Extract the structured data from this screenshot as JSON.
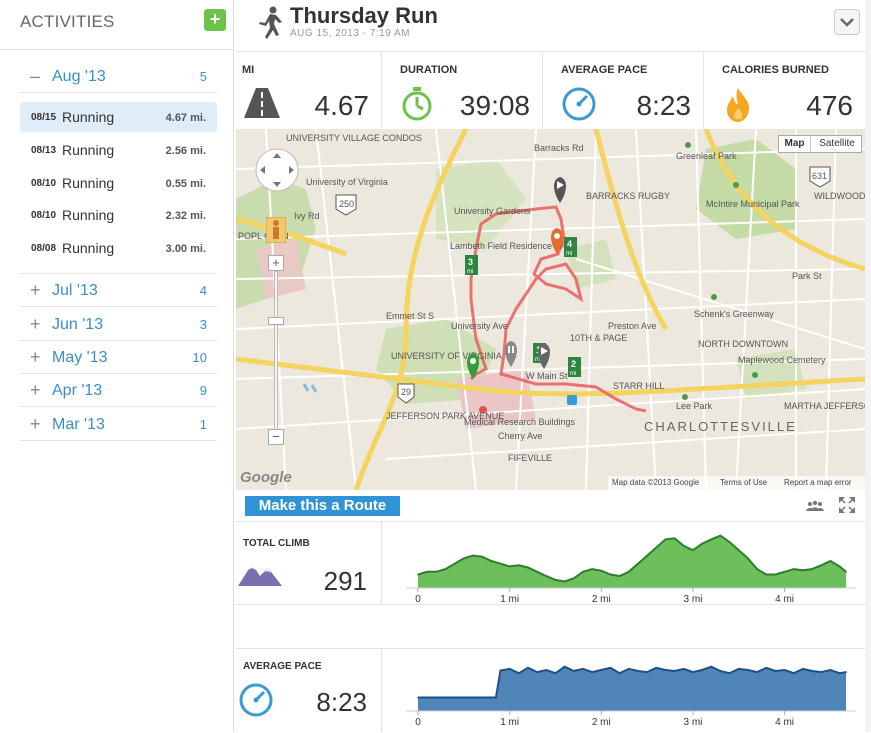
{
  "sidebar": {
    "title": "ACTIVITIES",
    "add_label": "+",
    "expanded_month": {
      "sign": "–",
      "label": "Aug '13",
      "count": "5"
    },
    "activities": [
      {
        "date": "08/15",
        "name": "Running",
        "distance": "4.67 mi.",
        "selected": true
      },
      {
        "date": "08/13",
        "name": "Running",
        "distance": "2.56 mi.",
        "selected": false
      },
      {
        "date": "08/10",
        "name": "Running",
        "distance": "0.55 mi.",
        "selected": false
      },
      {
        "date": "08/10",
        "name": "Running",
        "distance": "2.32 mi.",
        "selected": false
      },
      {
        "date": "08/08",
        "name": "Running",
        "distance": "3.00 mi.",
        "selected": false
      }
    ],
    "months": [
      {
        "sign": "+",
        "label": "Jul '13",
        "count": "4"
      },
      {
        "sign": "+",
        "label": "Jun '13",
        "count": "3"
      },
      {
        "sign": "+",
        "label": "May '13",
        "count": "10"
      },
      {
        "sign": "+",
        "label": "Apr '13",
        "count": "9"
      },
      {
        "sign": "+",
        "label": "Mar '13",
        "count": "1"
      }
    ]
  },
  "header": {
    "title": "Thursday Run",
    "date": "AUG 15, 2013 - 7:19 AM",
    "icon": "runner-icon"
  },
  "stats": [
    {
      "label": "MI",
      "value": "4.67",
      "icon": "road-icon"
    },
    {
      "label": "DURATION",
      "value": "39:08",
      "icon": "stopwatch-icon"
    },
    {
      "label": "AVERAGE PACE",
      "value": "8:23",
      "icon": "speedometer-icon"
    },
    {
      "label": "CALORIES BURNED",
      "value": "476",
      "icon": "flame-icon"
    }
  ],
  "map": {
    "type_buttons": [
      "Map",
      "Satellite"
    ],
    "labels": {
      "uva_village": "UNIVERSITY VILLAGE CONDOS",
      "uva": "University of Virginia",
      "gardens": "University Gardens",
      "lambeth": "Lambeth Field Residence Area",
      "barracks": "BARRACKS RUGBY",
      "greenleaf": "Greenleaf Park",
      "mcintire": "McIntire Municipal Park",
      "wildwood": "WILDWOOD",
      "schenks": "Schenk's Greenway",
      "north_downtown": "NORTH DOWNTOWN",
      "maplewood": "Maplewood Cemetery",
      "martha": "MARTHA JEFFERSON",
      "leepark": "Lee Park",
      "starr_hill": "STARR HILL",
      "tenth_page": "10TH & PAGE",
      "charlottesville": "CHARLOTTESVILLE",
      "jefferson_park": "JEFFERSON PARK AVENUE",
      "medical": "Medical Research Buildings",
      "fifeville": "FIFEVILLE",
      "uva_bottom": "UNIVERSITY OF VIRGINIA",
      "popl_glen": "POPL GLEN",
      "ivy": "Ivy Rd",
      "emmet": "Emmet St S",
      "univ_ave": "University Ave",
      "wmain": "W Main St",
      "preston": "Preston Ave",
      "barracks_rd": "Barracks Rd",
      "cherry": "Cherry Ave",
      "parkst": "Park St",
      "rt250": "250",
      "rt29": "29",
      "rt631": "631"
    },
    "mile_markers": [
      "1",
      "2",
      "3",
      "4"
    ],
    "mile_unit": "mi",
    "attribution": "Map data ©2013 Google",
    "terms": "Terms of Use",
    "report": "Report a map error",
    "logo": "Google"
  },
  "route_button": "Make this a Route",
  "climb": {
    "label": "TOTAL CLIMB",
    "value": "291",
    "fill_color": "#6dbf5b",
    "line_color": "#2e7d2e"
  },
  "pace": {
    "label": "AVERAGE PACE",
    "value": "8:23",
    "fill_color": "#4f86b8",
    "line_color": "#1f4f85"
  },
  "chart_data": [
    {
      "type": "area",
      "title": "TOTAL CLIMB",
      "x_ticks": [
        "0",
        "1 mi",
        "2 mi",
        "3 mi",
        "4 mi"
      ],
      "xlim": [
        0,
        4.67
      ],
      "x": [
        0,
        0.1,
        0.2,
        0.3,
        0.4,
        0.5,
        0.6,
        0.7,
        0.8,
        0.9,
        1.0,
        1.1,
        1.2,
        1.3,
        1.4,
        1.5,
        1.6,
        1.7,
        1.8,
        1.9,
        2.0,
        2.1,
        2.2,
        2.3,
        2.4,
        2.5,
        2.6,
        2.7,
        2.8,
        2.9,
        3.0,
        3.1,
        3.2,
        3.3,
        3.4,
        3.5,
        3.6,
        3.7,
        3.8,
        3.9,
        4.0,
        4.1,
        4.2,
        4.3,
        4.4,
        4.5,
        4.6,
        4.67
      ],
      "values": [
        0.25,
        0.3,
        0.3,
        0.35,
        0.45,
        0.55,
        0.6,
        0.58,
        0.5,
        0.45,
        0.4,
        0.42,
        0.38,
        0.3,
        0.22,
        0.15,
        0.12,
        0.18,
        0.3,
        0.35,
        0.32,
        0.25,
        0.22,
        0.3,
        0.45,
        0.6,
        0.75,
        0.9,
        0.92,
        0.78,
        0.7,
        0.82,
        0.9,
        0.97,
        0.85,
        0.7,
        0.55,
        0.35,
        0.25,
        0.25,
        0.3,
        0.35,
        0.33,
        0.35,
        0.42,
        0.5,
        0.4,
        0.3
      ]
    },
    {
      "type": "area",
      "title": "AVERAGE PACE",
      "x_ticks": [
        "0",
        "1 mi",
        "2 mi",
        "3 mi",
        "4 mi"
      ],
      "xlim": [
        0,
        4.67
      ],
      "x": [
        0,
        0.1,
        0.2,
        0.3,
        0.4,
        0.5,
        0.6,
        0.7,
        0.8,
        0.85,
        0.9,
        1.0,
        1.1,
        1.2,
        1.3,
        1.4,
        1.5,
        1.6,
        1.7,
        1.8,
        1.9,
        2.0,
        2.1,
        2.2,
        2.3,
        2.4,
        2.5,
        2.6,
        2.7,
        2.8,
        2.9,
        3.0,
        3.1,
        3.2,
        3.3,
        3.4,
        3.5,
        3.6,
        3.7,
        3.8,
        3.9,
        4.0,
        4.1,
        4.2,
        4.3,
        4.4,
        4.5,
        4.6,
        4.67
      ],
      "values": [
        0.25,
        0.25,
        0.25,
        0.25,
        0.25,
        0.25,
        0.25,
        0.25,
        0.25,
        0.25,
        0.75,
        0.78,
        0.7,
        0.8,
        0.72,
        0.76,
        0.7,
        0.82,
        0.74,
        0.78,
        0.72,
        0.76,
        0.8,
        0.7,
        0.78,
        0.74,
        0.72,
        0.8,
        0.76,
        0.74,
        0.78,
        0.72,
        0.76,
        0.82,
        0.74,
        0.7,
        0.78,
        0.76,
        0.72,
        0.8,
        0.74,
        0.76,
        0.7,
        0.78,
        0.74,
        0.72,
        0.76,
        0.7,
        0.72
      ]
    }
  ]
}
